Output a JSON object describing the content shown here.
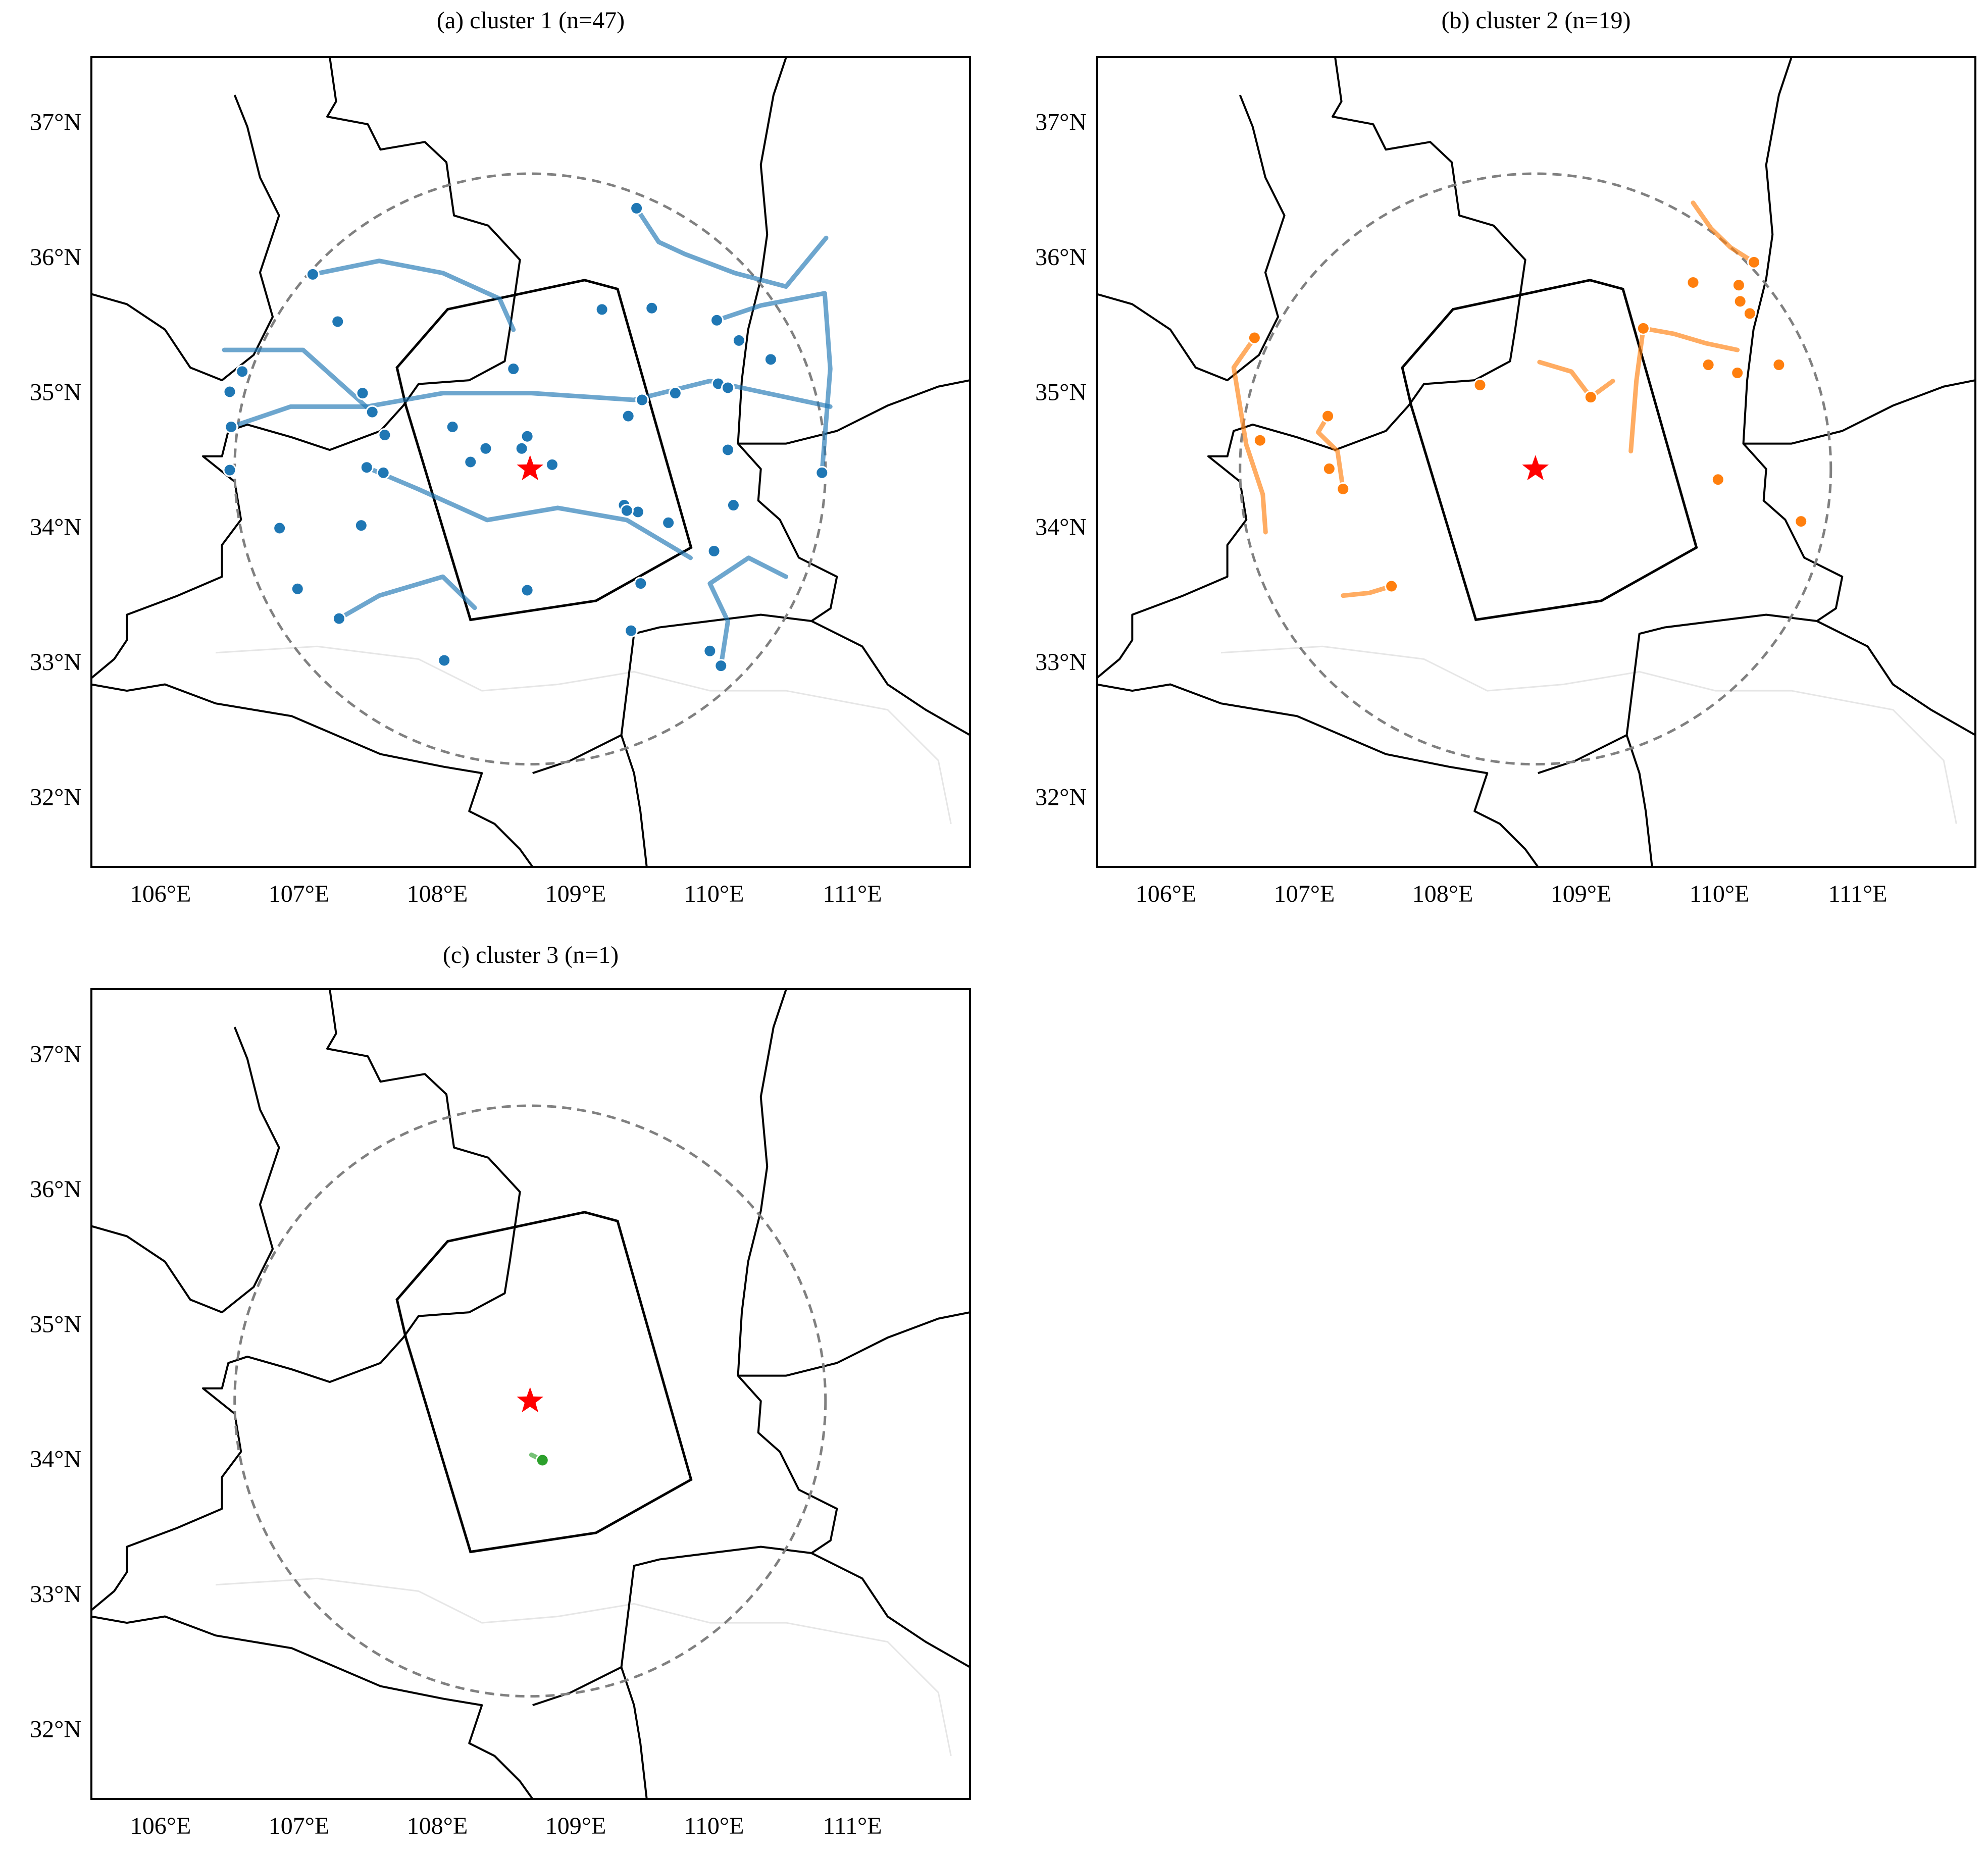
{
  "chart_data": [
    {
      "type": "map",
      "title": "(a) cluster 1 (n=47)",
      "color": "#1f77b4",
      "xlim": [
        105.5,
        111.85
      ],
      "ylim": [
        31.5,
        37.5
      ],
      "xticks": [
        {
          "value": 106,
          "label": "106°E"
        },
        {
          "value": 107,
          "label": "107°E"
        },
        {
          "value": 108,
          "label": "108°E"
        },
        {
          "value": 109,
          "label": "109°E"
        },
        {
          "value": 110,
          "label": "110°E"
        },
        {
          "value": 111,
          "label": "111°E"
        }
      ],
      "yticks": [
        {
          "value": 32,
          "label": "32°N"
        },
        {
          "value": 33,
          "label": "33°N"
        },
        {
          "value": 34,
          "label": "34°N"
        },
        {
          "value": 35,
          "label": "35°N"
        },
        {
          "value": 36,
          "label": "36°N"
        },
        {
          "value": 37,
          "label": "37°N"
        }
      ],
      "x": [
        109.44,
        107.1,
        107.28,
        106.59,
        106.5,
        106.51,
        106.5,
        106.86,
        106.99,
        107.29,
        107.45,
        107.49,
        107.61,
        107.53,
        107.46,
        107.62,
        108.11,
        108.35,
        108.61,
        108.65,
        108.55,
        108.83,
        109.19,
        109.55,
        109.38,
        109.48,
        109.35,
        109.45,
        109.67,
        109.47,
        109.4,
        109.72,
        110.02,
        110.41,
        110.03,
        110.1,
        110.14,
        110.0,
        109.97,
        110.05,
        110.78,
        108.05,
        108.65,
        108.24,
        110.1,
        110.18,
        109.37
      ],
      "y": [
        36.38,
        35.89,
        35.54,
        35.17,
        35.02,
        34.76,
        34.44,
        34.01,
        33.56,
        33.34,
        34.03,
        34.46,
        34.42,
        34.87,
        35.01,
        34.7,
        34.76,
        34.6,
        34.6,
        34.69,
        35.19,
        34.48,
        35.63,
        35.64,
        34.84,
        34.96,
        34.18,
        34.13,
        34.05,
        33.6,
        33.25,
        35.01,
        35.55,
        35.26,
        35.08,
        34.59,
        34.18,
        33.84,
        33.1,
        32.99,
        34.42,
        33.03,
        33.55,
        34.5,
        35.05,
        35.4,
        34.14
      ],
      "tracks": [
        {
          "x": [
            107.1,
            107.58,
            108.04,
            108.45,
            108.55
          ],
          "y": [
            35.89,
            35.99,
            35.9,
            35.71,
            35.48
          ]
        },
        {
          "x": [
            109.44,
            109.6,
            109.79,
            110.15,
            110.52,
            110.81
          ],
          "y": [
            36.38,
            36.13,
            36.04,
            35.9,
            35.8,
            36.16
          ]
        },
        {
          "x": [
            106.51,
            106.94,
            107.49,
            108.04,
            108.68,
            109.42,
            109.97,
            110.84
          ],
          "y": [
            34.76,
            34.91,
            34.91,
            35.01,
            35.01,
            34.96,
            35.1,
            34.91
          ]
        },
        {
          "x": [
            107.49,
            107.86,
            108.36,
            108.87,
            109.37,
            109.83
          ],
          "y": [
            34.46,
            34.3,
            34.07,
            34.16,
            34.07,
            33.79
          ]
        },
        {
          "x": [
            107.29,
            107.58,
            108.04,
            108.27
          ],
          "y": [
            33.34,
            33.51,
            33.65,
            33.42
          ]
        },
        {
          "x": [
            110.05,
            110.1,
            109.97,
            110.25,
            110.52
          ],
          "y": [
            32.99,
            33.32,
            33.6,
            33.79,
            33.65
          ]
        },
        {
          "x": [
            106.46,
            107.03,
            107.53
          ],
          "y": [
            35.33,
            35.33,
            34.87
          ]
        },
        {
          "x": [
            110.02,
            110.34,
            110.8,
            110.84,
            110.78
          ],
          "y": [
            35.55,
            35.66,
            35.75,
            35.19,
            34.42
          ]
        }
      ]
    },
    {
      "type": "map",
      "title": "(b) cluster 2 (n=19)",
      "color": "#ff7f0e",
      "xlim": [
        105.5,
        111.85
      ],
      "ylim": [
        31.5,
        37.5
      ],
      "xticks": [
        {
          "value": 106,
          "label": "106°E"
        },
        {
          "value": 107,
          "label": "107°E"
        },
        {
          "value": 108,
          "label": "108°E"
        },
        {
          "value": 109,
          "label": "109°E"
        },
        {
          "value": 110,
          "label": "110°E"
        },
        {
          "value": 111,
          "label": "111°E"
        }
      ],
      "yticks": [
        {
          "value": 32,
          "label": "32°N"
        },
        {
          "value": 33,
          "label": "33°N"
        },
        {
          "value": 34,
          "label": "34°N"
        },
        {
          "value": 35,
          "label": "35°N"
        },
        {
          "value": 36,
          "label": "36°N"
        },
        {
          "value": 37,
          "label": "37°N"
        }
      ],
      "x": [
        109.81,
        110.25,
        110.14,
        110.15,
        110.22,
        109.45,
        109.92,
        110.13,
        110.43,
        108.27,
        109.07,
        107.17,
        106.64,
        106.68,
        107.18,
        107.28,
        109.99,
        110.59,
        107.63
      ],
      "y": [
        35.83,
        35.98,
        35.81,
        35.69,
        35.6,
        35.49,
        35.22,
        35.16,
        35.22,
        35.07,
        34.98,
        34.84,
        35.42,
        34.66,
        34.45,
        34.3,
        34.37,
        34.06,
        33.58
      ],
      "tracks": [
        {
          "x": [
            109.81,
            109.94,
            110.08,
            110.25
          ],
          "y": [
            36.42,
            36.23,
            36.09,
            35.98
          ]
        },
        {
          "x": [
            109.45,
            109.67,
            109.9,
            110.13
          ],
          "y": [
            35.49,
            35.45,
            35.38,
            35.33
          ]
        },
        {
          "x": [
            107.17,
            107.1,
            107.24,
            107.28
          ],
          "y": [
            34.84,
            34.72,
            34.58,
            34.3
          ]
        },
        {
          "x": [
            106.64,
            106.49,
            106.58,
            106.7,
            106.72
          ],
          "y": [
            35.42,
            35.2,
            34.63,
            34.26,
            33.98
          ]
        },
        {
          "x": [
            108.7,
            108.93,
            109.07,
            109.23
          ],
          "y": [
            35.24,
            35.17,
            34.98,
            35.1
          ]
        },
        {
          "x": [
            109.45,
            109.4,
            109.36
          ],
          "y": [
            35.49,
            35.1,
            34.58
          ]
        },
        {
          "x": [
            107.63,
            107.47,
            107.28
          ],
          "y": [
            33.58,
            33.53,
            33.51
          ]
        }
      ]
    },
    {
      "type": "map",
      "title": "(c) cluster 3 (n=1)",
      "color": "#2ca02c",
      "xlim": [
        105.5,
        111.85
      ],
      "ylim": [
        31.5,
        37.5
      ],
      "xticks": [
        {
          "value": 106,
          "label": "106°E"
        },
        {
          "value": 107,
          "label": "107°E"
        },
        {
          "value": 108,
          "label": "108°E"
        },
        {
          "value": 109,
          "label": "109°E"
        },
        {
          "value": 110,
          "label": "110°E"
        },
        {
          "value": 111,
          "label": "111°E"
        }
      ],
      "yticks": [
        {
          "value": 32,
          "label": "32°N"
        },
        {
          "value": 33,
          "label": "33°N"
        },
        {
          "value": 34,
          "label": "34°N"
        },
        {
          "value": 35,
          "label": "35°N"
        },
        {
          "value": 36,
          "label": "36°N"
        },
        {
          "value": 37,
          "label": "37°N"
        }
      ],
      "x": [
        108.76
      ],
      "y": [
        34.01
      ],
      "tracks": [
        {
          "x": [
            108.68,
            108.76
          ],
          "y": [
            34.05,
            34.01
          ]
        }
      ]
    }
  ]
}
